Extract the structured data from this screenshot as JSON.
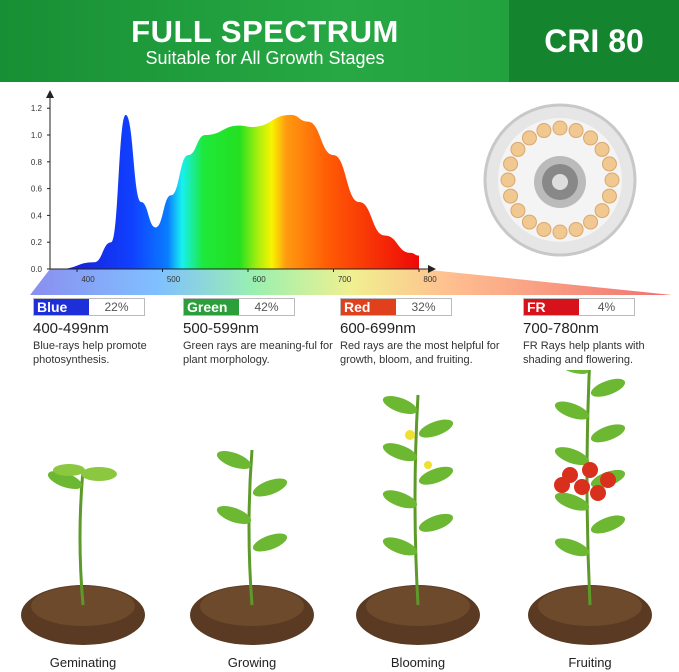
{
  "header": {
    "title": "FULL SPECTRUM",
    "subtitle": "Suitable for All Growth Stages",
    "cri": "CRI 80"
  },
  "chart_data": {
    "type": "area",
    "x": [
      380,
      420,
      440,
      457,
      475,
      492,
      510,
      530,
      550,
      590,
      605,
      650,
      670,
      700,
      730,
      760,
      790,
      800
    ],
    "y": [
      0,
      0.05,
      0.2,
      1.15,
      0.5,
      0.31,
      0.55,
      0.85,
      1.0,
      1.07,
      1.06,
      1.15,
      1.1,
      0.85,
      0.5,
      0.25,
      0.12,
      0.1
    ],
    "xticks": [
      "400",
      "500",
      "600",
      "700",
      "800"
    ],
    "yticks": [
      "0.0",
      "0.2",
      "0.4",
      "0.6",
      "0.8",
      "1.0",
      "1.2"
    ],
    "xlim": [
      368,
      810
    ],
    "ylim": [
      0,
      1.25
    ]
  },
  "bands": [
    {
      "name": "Blue",
      "pct": "22%",
      "range": "400-499nm",
      "desc": "Blue-rays help promote photosynthesis.",
      "color": "#1d2fd8"
    },
    {
      "name": "Green",
      "pct": "42%",
      "range": "500-599nm",
      "desc": "Green rays are meaning-ful for plant morphology.",
      "color": "#2a9f3a"
    },
    {
      "name": "Red",
      "pct": "32%",
      "range": "600-699nm",
      "desc": "Red rays are the most helpful for growth, bloom, and fruiting.",
      "color": "#e0401c"
    },
    {
      "name": "FR",
      "pct": "4%",
      "range": "700-780nm",
      "desc": "FR Rays help plants with shading and flowering.",
      "color": "#d8121a"
    }
  ],
  "stages": [
    "Geminating",
    "Growing",
    "Blooming",
    "Fruiting"
  ]
}
